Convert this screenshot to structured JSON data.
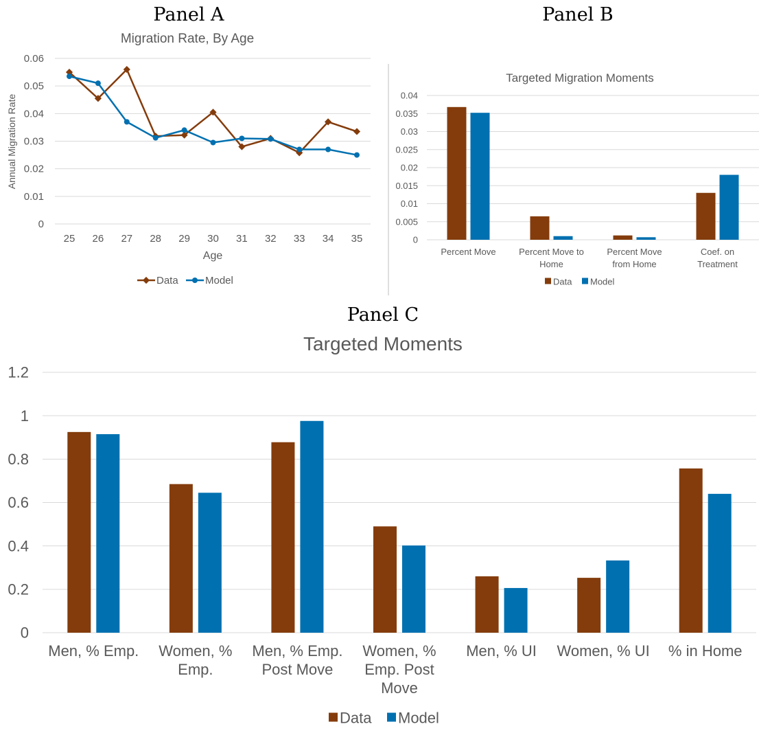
{
  "panels": {
    "a": "Panel A",
    "b": "Panel B",
    "c": "Panel C"
  },
  "colors": {
    "data": "#843c0c",
    "model": "#0070b0"
  },
  "chart_data": [
    {
      "type": "line",
      "title": "Migration Rate, By Age",
      "xlabel": "Age",
      "ylabel": "Annual Migration Rate",
      "x": [
        25,
        26,
        27,
        28,
        29,
        30,
        31,
        32,
        33,
        34,
        35
      ],
      "ylim": [
        0,
        0.06
      ],
      "yticks": [
        "0",
        "0.01",
        "0.02",
        "0.03",
        "0.04",
        "0.05",
        "0.06"
      ],
      "grid": true,
      "legend": "bottom",
      "series": [
        {
          "name": "Data",
          "values": [
            0.055,
            0.0455,
            0.056,
            0.0318,
            0.0322,
            0.0405,
            0.028,
            0.031,
            0.0258,
            0.037,
            0.0335
          ]
        },
        {
          "name": "Model",
          "values": [
            0.0535,
            0.051,
            0.037,
            0.0312,
            0.034,
            0.0295,
            0.031,
            0.0308,
            0.027,
            0.027,
            0.025
          ]
        }
      ]
    },
    {
      "type": "bar",
      "title": "Targeted Migration Moments",
      "categories": [
        [
          "Percent Move"
        ],
        [
          "Percent Move to",
          "Home"
        ],
        [
          "Percent Move",
          "from Home"
        ],
        [
          "Coef. on",
          "Treatment"
        ]
      ],
      "ylim": [
        0,
        0.04
      ],
      "yticks": [
        "0",
        "0.005",
        "0.01",
        "0.015",
        "0.02",
        "0.025",
        "0.03",
        "0.035",
        "0.04"
      ],
      "grid": true,
      "legend": "bottom",
      "series": [
        {
          "name": "Data",
          "values": [
            0.0368,
            0.0065,
            0.0012,
            0.013
          ]
        },
        {
          "name": "Model",
          "values": [
            0.0352,
            0.001,
            0.0007,
            0.018
          ]
        }
      ]
    },
    {
      "type": "bar",
      "title": "Targeted Moments",
      "categories": [
        [
          "Men, % Emp."
        ],
        [
          "Women, %",
          "Emp."
        ],
        [
          "Men, % Emp.",
          "Post Move"
        ],
        [
          "Women, %",
          "Emp. Post",
          "Move"
        ],
        [
          "Men, % UI"
        ],
        [
          "Women, % UI"
        ],
        [
          "% in Home"
        ]
      ],
      "ylim": [
        0,
        1.2
      ],
      "yticks": [
        "0",
        "0.2",
        "0.4",
        "0.6",
        "0.8",
        "1",
        "1.2"
      ],
      "grid": true,
      "legend": "bottom",
      "series": [
        {
          "name": "Data",
          "values": [
            0.925,
            0.685,
            0.878,
            0.49,
            0.26,
            0.253,
            0.757
          ]
        },
        {
          "name": "Model",
          "values": [
            0.915,
            0.645,
            0.976,
            0.402,
            0.206,
            0.333,
            0.64
          ]
        }
      ]
    }
  ]
}
